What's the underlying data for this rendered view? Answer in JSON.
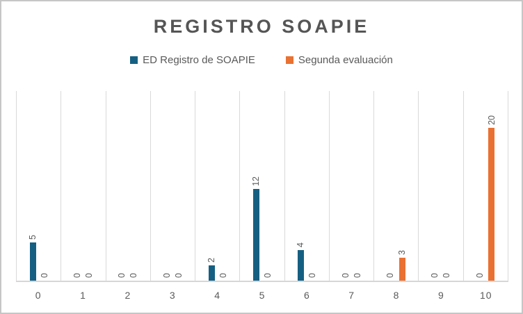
{
  "title": "REGISTRO SOAPIE",
  "legend": [
    {
      "label": "ED Registro de SOAPIE",
      "color": "#156082"
    },
    {
      "label": "Segunda evaluación",
      "color": "#E97132"
    }
  ],
  "chart_data": {
    "type": "bar",
    "title": "REGISTRO SOAPIE",
    "categories": [
      "0",
      "1",
      "2",
      "3",
      "4",
      "5",
      "6",
      "7",
      "8",
      "9",
      "10"
    ],
    "series": [
      {
        "name": "ED Registro de SOAPIE",
        "color": "#156082",
        "values": [
          5,
          0,
          0,
          0,
          2,
          12,
          4,
          0,
          0,
          0,
          0
        ]
      },
      {
        "name": "Segunda evaluación",
        "color": "#E97132",
        "values": [
          0,
          0,
          0,
          0,
          0,
          0,
          0,
          0,
          3,
          0,
          20
        ]
      }
    ],
    "xlabel": "",
    "ylabel": "",
    "ylim": [
      0,
      25
    ],
    "y_axis_visible": false,
    "data_labels": true,
    "data_label_rotation": "vertical",
    "gridlines": "vertical-category-boundaries",
    "grid_color": "#D9D9D9",
    "legend_position": "top",
    "frame_border_color": "#C6C6C6"
  }
}
